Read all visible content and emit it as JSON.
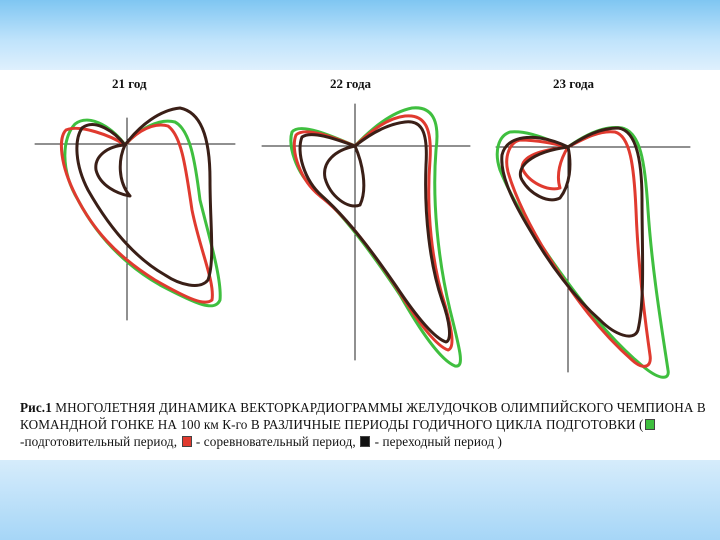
{
  "figure": {
    "panels": [
      {
        "title": "21 год"
      },
      {
        "title": "22 года"
      },
      {
        "title": "23 года"
      }
    ],
    "caption": {
      "label": "Рис.1",
      "text": " МНОГОЛЕТНЯЯ ДИНАМИКА ВЕКТОРКАРДИОГРАММЫ ЖЕЛУДОЧКОВ ОЛИМПИЙСКОГО ЧЕМПИОНА В КОМАНДНОЙ ГОНКЕ НА 100 км К-го В РАЗЛИЧНЫЕ ПЕРИОДЫ ГОДИЧНОГО ЦИКЛА ПОДГОТОВКИ (",
      "legend": [
        {
          "color": "#3fbf3f",
          "label": " -подготовительный период, "
        },
        {
          "color": "#e03a2f",
          "label": " - соревновательный период, "
        },
        {
          "color": "#3a1f17",
          "label": " - переходный период )"
        }
      ]
    }
  }
}
